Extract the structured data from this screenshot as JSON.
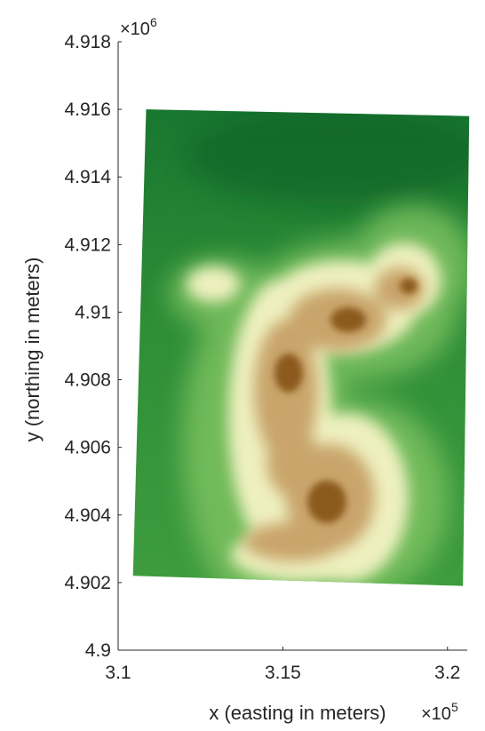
{
  "chart_data": {
    "type": "heatmap",
    "title": "",
    "xlabel": "x (easting in meters)",
    "ylabel": "y (northing in meters)",
    "x_scale": {
      "base": "×10",
      "exponent": "5"
    },
    "y_scale": {
      "base": "×10",
      "exponent": "6"
    },
    "xlim": [
      3.1,
      3.206
    ],
    "ylim": [
      4.9,
      4.918
    ],
    "x_ticks": [
      {
        "value": 3.1,
        "label": "3.1"
      },
      {
        "value": 3.15,
        "label": "3.15"
      },
      {
        "value": 3.2,
        "label": "3.2"
      }
    ],
    "y_ticks": [
      {
        "value": 4.9,
        "label": "4.9"
      },
      {
        "value": 4.902,
        "label": "4.902"
      },
      {
        "value": 4.904,
        "label": "4.904"
      },
      {
        "value": 4.906,
        "label": "4.906"
      },
      {
        "value": 4.908,
        "label": "4.908"
      },
      {
        "value": 4.91,
        "label": "4.91"
      },
      {
        "value": 4.912,
        "label": "4.912"
      },
      {
        "value": 4.914,
        "label": "4.914"
      },
      {
        "value": 4.916,
        "label": "4.916"
      },
      {
        "value": 4.918,
        "label": "4.918"
      }
    ],
    "raster_extent": {
      "corners": [
        {
          "x": 3.1085,
          "y": 4.916
        },
        {
          "x": 3.2066,
          "y": 4.9158
        },
        {
          "x": 3.2047,
          "y": 4.9019
        },
        {
          "x": 3.1045,
          "y": 4.9022
        }
      ]
    },
    "colormap": [
      "#0a6a2a",
      "#3f9c3c",
      "#a6d584",
      "#f2f0c4",
      "#c8a874",
      "#8a5a20"
    ],
    "colormap_name": "terrain (green low → brown high)",
    "grid": false,
    "box": false
  }
}
